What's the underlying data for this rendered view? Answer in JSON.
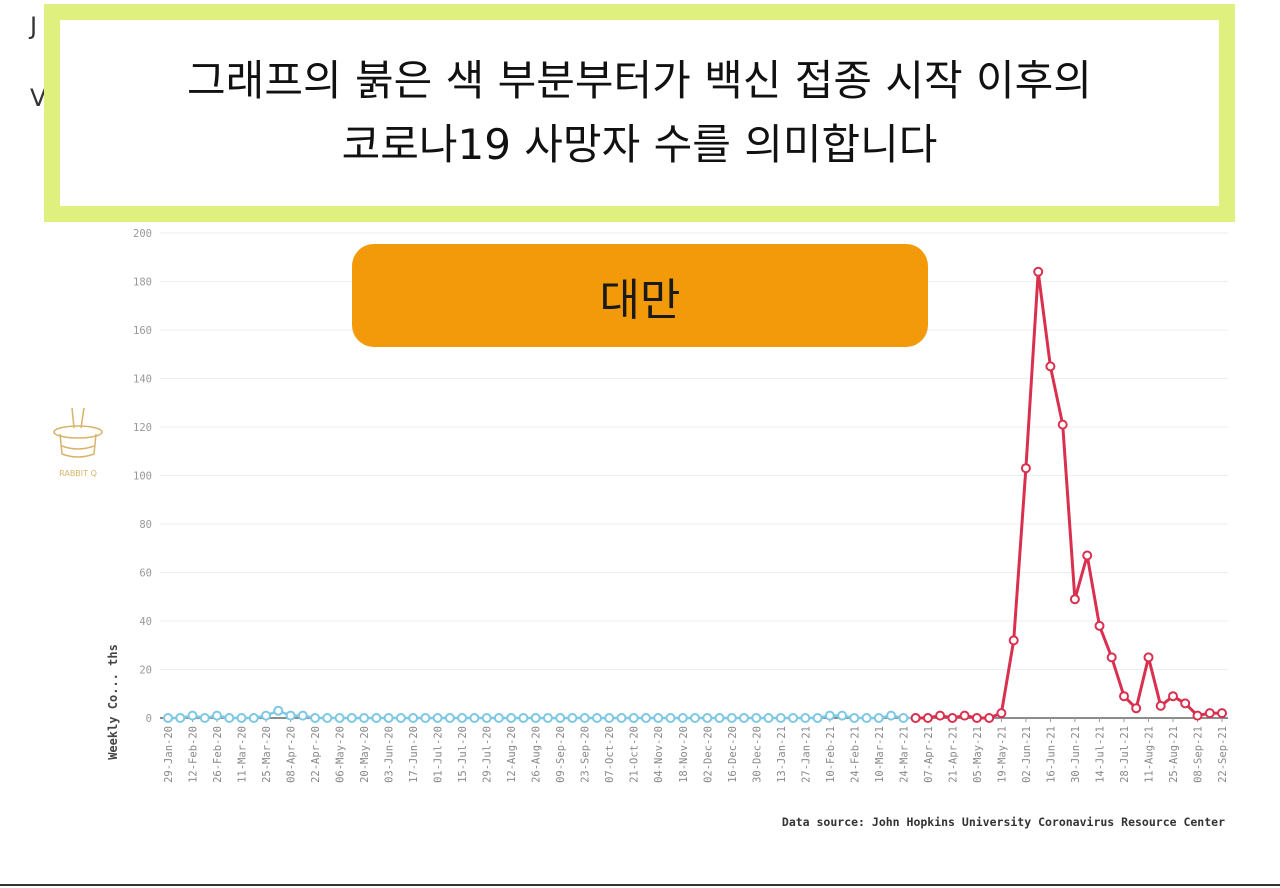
{
  "caption": {
    "line1": "그래프의 붉은 색 부분부터가 백신 접종 시작 이후의",
    "line2": "코로나19 사망자 수를 의미합니다"
  },
  "country_label": "대만",
  "corner_text": [
    "J",
    "V"
  ],
  "watermark_text": "RABBIT Q",
  "colors": {
    "caption_border": "#dff07f",
    "pill": "#f39a0a",
    "pre_vaccine": "#7ec8e3",
    "post_vaccine": "#d9304f"
  },
  "chart_data": {
    "type": "line",
    "title": "",
    "xlabel": "",
    "ylabel": "Weekly Co... ths",
    "ylim": [
      0,
      200
    ],
    "yticks": [
      0,
      20,
      40,
      60,
      80,
      100,
      120,
      140,
      160,
      180,
      200
    ],
    "grid": true,
    "source": "Data source: John Hopkins University Coronavirus Resource Center",
    "vaccine_start": "07-Apr-21",
    "x": [
      "29-Jan-20",
      "05-Feb-20",
      "12-Feb-20",
      "19-Feb-20",
      "26-Feb-20",
      "04-Mar-20",
      "11-Mar-20",
      "18-Mar-20",
      "25-Mar-20",
      "01-Apr-20",
      "08-Apr-20",
      "15-Apr-20",
      "22-Apr-20",
      "29-Apr-20",
      "06-May-20",
      "13-May-20",
      "20-May-20",
      "27-May-20",
      "03-Jun-20",
      "10-Jun-20",
      "17-Jun-20",
      "24-Jun-20",
      "01-Jul-20",
      "08-Jul-20",
      "15-Jul-20",
      "22-Jul-20",
      "29-Jul-20",
      "05-Aug-20",
      "12-Aug-20",
      "19-Aug-20",
      "26-Aug-20",
      "02-Sep-20",
      "09-Sep-20",
      "16-Sep-20",
      "23-Sep-20",
      "30-Sep-20",
      "07-Oct-20",
      "14-Oct-20",
      "21-Oct-20",
      "28-Oct-20",
      "04-Nov-20",
      "11-Nov-20",
      "18-Nov-20",
      "25-Nov-20",
      "02-Dec-20",
      "09-Dec-20",
      "16-Dec-20",
      "23-Dec-20",
      "30-Dec-20",
      "06-Jan-21",
      "13-Jan-21",
      "20-Jan-21",
      "27-Jan-21",
      "03-Feb-21",
      "10-Feb-21",
      "17-Feb-21",
      "24-Feb-21",
      "03-Mar-21",
      "10-Mar-21",
      "17-Mar-21",
      "24-Mar-21",
      "31-Mar-21",
      "07-Apr-21",
      "14-Apr-21",
      "21-Apr-21",
      "28-Apr-21",
      "05-May-21",
      "12-May-21",
      "19-May-21",
      "26-May-21",
      "02-Jun-21",
      "09-Jun-21",
      "16-Jun-21",
      "23-Jun-21",
      "30-Jun-21",
      "07-Jul-21",
      "14-Jul-21",
      "21-Jul-21",
      "28-Jul-21",
      "04-Aug-21",
      "11-Aug-21",
      "18-Aug-21",
      "25-Aug-21",
      "01-Sep-21",
      "08-Sep-21",
      "15-Sep-21",
      "22-Sep-21"
    ],
    "xticks": [
      "29-Jan-20",
      "12-Feb-20",
      "26-Feb-20",
      "11-Mar-20",
      "25-Mar-20",
      "08-Apr-20",
      "22-Apr-20",
      "06-May-20",
      "20-May-20",
      "03-Jun-20",
      "17-Jun-20",
      "01-Jul-20",
      "15-Jul-20",
      "29-Jul-20",
      "12-Aug-20",
      "26-Aug-20",
      "09-Sep-20",
      "23-Sep-20",
      "07-Oct-20",
      "21-Oct-20",
      "04-Nov-20",
      "18-Nov-20",
      "02-Dec-20",
      "16-Dec-20",
      "30-Dec-20",
      "13-Jan-21",
      "27-Jan-21",
      "10-Feb-21",
      "24-Feb-21",
      "10-Mar-21",
      "24-Mar-21",
      "07-Apr-21",
      "21-Apr-21",
      "05-May-21",
      "19-May-21",
      "02-Jun-21",
      "16-Jun-21",
      "30-Jun-21",
      "14-Jul-21",
      "28-Jul-21",
      "11-Aug-21",
      "25-Aug-21",
      "08-Sep-21",
      "22-Sep-21"
    ],
    "series": [
      {
        "values": [
          0,
          0,
          1,
          0,
          1,
          0,
          0,
          0,
          1,
          3,
          1,
          1,
          0,
          0,
          0,
          0,
          0,
          0,
          0,
          0,
          0,
          0,
          0,
          0,
          0,
          0,
          0,
          0,
          0,
          0,
          0,
          0,
          0,
          0,
          0,
          0,
          0,
          0,
          0,
          0,
          0,
          0,
          0,
          0,
          0,
          0,
          0,
          0,
          0,
          0,
          0,
          0,
          0,
          0,
          1,
          1,
          0,
          0,
          0,
          1,
          0,
          0,
          null,
          null,
          null,
          null,
          null,
          null,
          null,
          null,
          null,
          null,
          null,
          null,
          null,
          null,
          null,
          null,
          null,
          null,
          null,
          null,
          null,
          null,
          null,
          null,
          null
        ]
      },
      {
        "values": [
          null,
          null,
          null,
          null,
          null,
          null,
          null,
          null,
          null,
          null,
          null,
          null,
          null,
          null,
          null,
          null,
          null,
          null,
          null,
          null,
          null,
          null,
          null,
          null,
          null,
          null,
          null,
          null,
          null,
          null,
          null,
          null,
          null,
          null,
          null,
          null,
          null,
          null,
          null,
          null,
          null,
          null,
          null,
          null,
          null,
          null,
          null,
          null,
          null,
          null,
          null,
          null,
          null,
          null,
          null,
          null,
          null,
          null,
          null,
          null,
          null,
          0,
          0,
          1,
          0,
          1,
          0,
          0,
          2,
          32,
          103,
          184,
          145,
          121,
          49,
          67,
          38,
          25,
          9,
          4,
          25,
          5,
          9,
          6,
          1,
          2,
          2
        ]
      }
    ]
  }
}
